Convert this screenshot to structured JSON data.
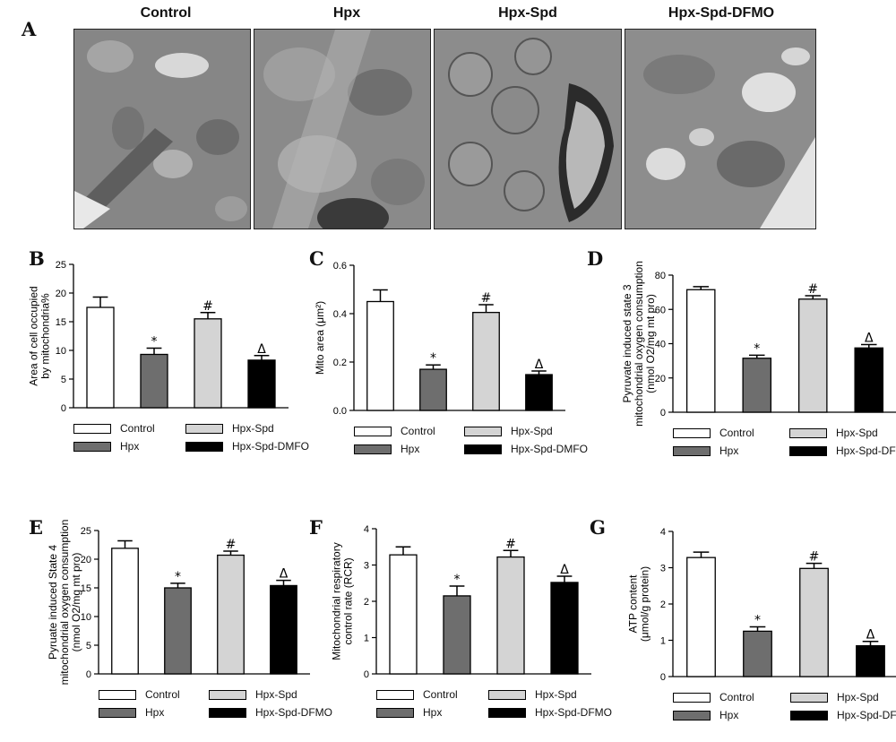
{
  "figure": {
    "panel_a_label": "A",
    "micro_titles": [
      "Control",
      "Hpx",
      "Hpx-Spd",
      "Hpx-Spd-DFMO"
    ],
    "group_colors": [
      "#ffffff",
      "#6e6e6e",
      "#d4d4d4",
      "#000000"
    ]
  },
  "chart_data": [
    {
      "panel": "B",
      "type": "bar",
      "categories": [
        "Control",
        "Hpx",
        "Hpx-Spd",
        "Hpx-Spd-DMFO"
      ],
      "values": [
        17.5,
        9.3,
        15.5,
        8.3
      ],
      "errors": [
        1.8,
        1.1,
        1.1,
        0.8
      ],
      "markers": [
        "",
        "*",
        "#",
        "Δ"
      ],
      "ylabel_lines": [
        "Area of cell occupied",
        "by mitochondria%"
      ],
      "ylim": [
        0,
        25
      ],
      "yticks": [
        "0",
        "5",
        "10",
        "15",
        "20",
        "25"
      ],
      "legend": [
        "Control",
        "Hpx-Spd",
        "Hpx",
        "Hpx-Spd-DMFO"
      ]
    },
    {
      "panel": "C",
      "type": "bar",
      "categories": [
        "Control",
        "Hpx",
        "Hpx-Spd",
        "Hpx-Spd-DMFO"
      ],
      "values": [
        0.45,
        0.17,
        0.405,
        0.148
      ],
      "errors": [
        0.048,
        0.018,
        0.032,
        0.015
      ],
      "markers": [
        "",
        "*",
        "#",
        "Δ"
      ],
      "ylabel_lines": [
        "Mito area (μm²)"
      ],
      "ylim": [
        0,
        0.6
      ],
      "yticks": [
        "0.0",
        "0.2",
        "0.4",
        "0.6"
      ],
      "legend": [
        "Control",
        "Hpx-Spd",
        "Hpx",
        "Hpx-Spd-DMFO"
      ]
    },
    {
      "panel": "D",
      "type": "bar",
      "categories": [
        "Control",
        "Hpx",
        "Hpx-Spd",
        "Hpx-Spd-DFMO"
      ],
      "values": [
        71.5,
        31.5,
        66,
        37.5
      ],
      "errors": [
        1.8,
        1.8,
        2.0,
        2.0
      ],
      "markers": [
        "",
        "*",
        "#",
        "Δ"
      ],
      "ylabel_lines": [
        "Pyruvate induced state 3",
        "mitochondrial oxygen consumption",
        "(nmol O2/mg mt pro)"
      ],
      "ylim": [
        0,
        80
      ],
      "yticks": [
        "0",
        "20",
        "40",
        "60",
        "80"
      ],
      "legend": [
        "Control",
        "Hpx-Spd",
        "Hpx",
        "Hpx-Spd-DFMO"
      ]
    },
    {
      "panel": "E",
      "type": "bar",
      "categories": [
        "Control",
        "Hpx",
        "Hpx-Spd",
        "Hpx-Spd-DFMO"
      ],
      "values": [
        21.9,
        15.0,
        20.7,
        15.4
      ],
      "errors": [
        1.3,
        0.8,
        0.7,
        0.9
      ],
      "markers": [
        "",
        "*",
        "#",
        "Δ"
      ],
      "ylabel_lines": [
        "Pyruate induced State 4",
        "mitochondrial oxygen consumption",
        "(nmol O2/mg mt pro)"
      ],
      "ylim": [
        0,
        25
      ],
      "yticks": [
        "0",
        "5",
        "10",
        "15",
        "20",
        "25"
      ],
      "legend": [
        "Control",
        "Hpx-Spd",
        "Hpx",
        "Hpx-Spd-DFMO"
      ]
    },
    {
      "panel": "F",
      "type": "bar",
      "categories": [
        "Control",
        "Hpx",
        "Hpx-Spd",
        "Hpx-Spd-DFMO"
      ],
      "values": [
        3.28,
        2.15,
        3.22,
        2.52
      ],
      "errors": [
        0.22,
        0.27,
        0.18,
        0.17
      ],
      "markers": [
        "",
        "*",
        "#",
        "Δ"
      ],
      "ylabel_lines": [
        "Mitochondrial respiratory",
        "control rate (RCR)"
      ],
      "ylim": [
        0,
        4
      ],
      "yticks": [
        "0",
        "1",
        "2",
        "3",
        "4"
      ],
      "legend": [
        "Control",
        "Hpx-Spd",
        "Hpx",
        "Hpx-Spd-DFMO"
      ]
    },
    {
      "panel": "G",
      "type": "bar",
      "categories": [
        "Control",
        "Hpx",
        "Hpx-Spd",
        "Hpx-Spd-DFMO"
      ],
      "values": [
        3.28,
        1.25,
        2.98,
        0.85
      ],
      "errors": [
        0.15,
        0.12,
        0.14,
        0.12
      ],
      "markers": [
        "",
        "*",
        "#",
        "Δ"
      ],
      "ylabel_lines": [
        "ATP content",
        "(μmol/g protein)"
      ],
      "ylim": [
        0,
        4
      ],
      "yticks": [
        "0",
        "1",
        "2",
        "3",
        "4"
      ],
      "legend": [
        "Control",
        "Hpx-Spd",
        "Hpx",
        "Hpx-Spd-DFMO"
      ]
    }
  ]
}
